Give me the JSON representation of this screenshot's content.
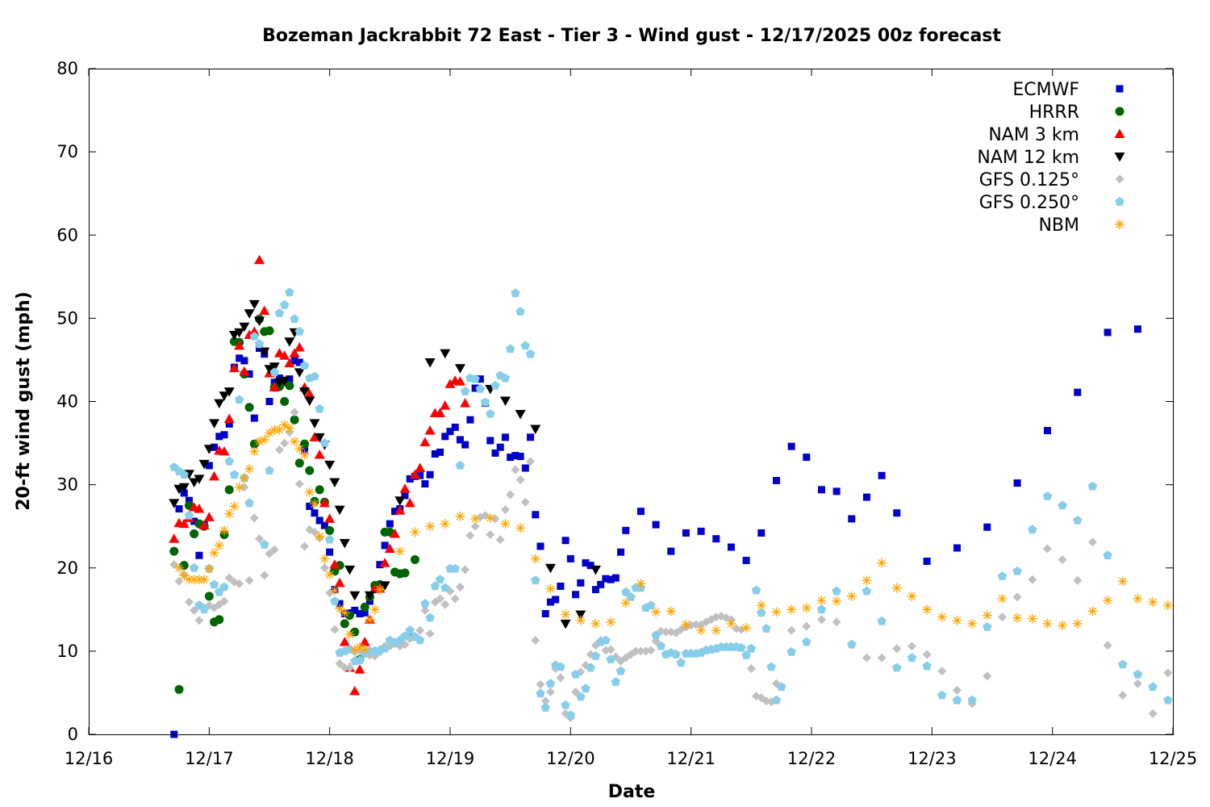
{
  "chart_data": {
    "type": "scatter",
    "title": "Bozeman Jackrabbit 72 East - Tier 3 - Wind gust - 12/17/2025 00z forecast",
    "xlabel": "Date",
    "ylabel": "20-ft wind gust (mph)",
    "x_units": "hours since 12/16 00:00",
    "xlim": [
      0,
      216
    ],
    "ylim": [
      0,
      80
    ],
    "x_ticks": [
      {
        "hour": 0,
        "label": "12/16"
      },
      {
        "hour": 24,
        "label": "12/17"
      },
      {
        "hour": 48,
        "label": "12/18"
      },
      {
        "hour": 72,
        "label": "12/19"
      },
      {
        "hour": 96,
        "label": "12/20"
      },
      {
        "hour": 120,
        "label": "12/21"
      },
      {
        "hour": 144,
        "label": "12/22"
      },
      {
        "hour": 168,
        "label": "12/23"
      },
      {
        "hour": 192,
        "label": "12/24"
      },
      {
        "hour": 216,
        "label": "12/25"
      }
    ],
    "y_ticks": [
      0,
      10,
      20,
      30,
      40,
      50,
      60,
      70,
      80
    ],
    "grid": false,
    "legend_position": "top-right",
    "series": [
      {
        "name": "ECMWF",
        "marker": "square",
        "color": "#0000cc",
        "segments": [
          {
            "start_hour": 17,
            "step_hours": 1,
            "values": [
              0,
              27.1,
              29.0,
              28.1,
              25.6,
              21.5,
              25.2,
              32.3,
              34.5,
              35.8,
              36.0,
              37.3,
              44.1,
              45.2,
              44.9,
              43.3,
              38.0,
              46.4,
              45.7,
              40.0,
              42.3,
              42.8,
              42.3,
              42.7,
              44.9,
              44.7,
              34.2,
              27.4,
              26.6,
              25.7,
              25.1,
              21.9,
              17.4,
              15.7,
              14.5,
              14.6,
              14.9,
              14.5,
              14.6,
              16.0,
              17.4,
              20.4,
              22.7,
              25.3,
              26.8,
              27.1,
              28.7,
              30.7,
              31.0,
              31.1,
              30.1,
              31.2,
              33.7,
              33.9,
              35.8,
              36.4,
              36.9,
              35.4,
              34.8,
              37.8,
              41.6,
              42.7,
              39.8,
              35.3,
              33.8,
              34.5,
              35.7,
              33.3,
              33.5,
              33.4,
              32.0,
              35.7,
              26.4,
              22.6,
              14.5,
              15.9,
              16.2,
              17.8,
              23.3,
              21.1,
              16.8,
              18.2,
              20.6,
              20.3,
              17.4,
              18.0,
              18.7,
              18.6,
              18.8,
              21.9
            ]
          },
          {
            "start_hour": 107,
            "step_hours": 3,
            "values": [
              24.5,
              26.8,
              25.2,
              22.0,
              24.2,
              24.4,
              23.5,
              22.5,
              20.9,
              24.2,
              30.5,
              34.6,
              33.3,
              29.4,
              29.2,
              25.9,
              28.5,
              31.1,
              26.6
            ]
          },
          {
            "start_hour": 167,
            "step_hours": 6,
            "values": [
              20.8,
              22.4,
              24.9,
              30.2,
              36.5,
              41.1,
              48.3,
              48.7
            ]
          }
        ]
      },
      {
        "name": "HRRR",
        "marker": "circle",
        "color": "#006400",
        "segments": [
          {
            "start_hour": 17,
            "step_hours": 1,
            "values": [
              22.0,
              5.4,
              20.3,
              27.5,
              24.1,
              25.3,
              25.0,
              16.6,
              13.5,
              13.8,
              24.0,
              29.4,
              47.2,
              47.1,
              43.3,
              39.3,
              34.9,
              49.9,
              48.4,
              48.5,
              41.7,
              41.8,
              40.0,
              41.9,
              37.8,
              32.6,
              34.9,
              31.7,
              28.0,
              29.4,
              27.9,
              24.5,
              19.6,
              20.3,
              13.3,
              14.3,
              12.3,
              9.0,
              15.3,
              16.5,
              17.9,
              18.0,
              24.3,
              24.3,
              19.5,
              19.3,
              19.4,
              11.8,
              21.0
            ]
          }
        ]
      },
      {
        "name": "NAM 3 km",
        "marker": "triangle-up",
        "color": "#ff0000",
        "segments": [
          {
            "start_hour": 17,
            "step_hours": 1,
            "values": [
              23.5,
              25.4,
              25.3,
              26.0,
              27.3,
              27.1,
              25.1,
              26.1,
              31.0,
              34.1,
              34.0,
              37.9,
              44.0,
              46.7,
              43.6,
              48.0,
              48.4,
              57.0,
              50.9,
              43.4,
              41.7,
              45.8,
              45.5,
              44.6,
              45.8,
              46.5,
              41.7,
              40.9,
              35.7,
              33.6,
              27.8,
              25.9,
              20.4,
              18.2,
              11.1,
              8.0,
              5.2,
              7.8,
              11.1,
              13.8,
              17.5,
              17.5,
              20.6,
              22.3,
              24.1,
              26.9,
              29.5,
              27.8,
              31.2,
              32.0,
              35.1,
              36.5,
              38.6,
              38.6,
              39.5,
              42.1,
              42.5,
              42.4,
              39.8
            ]
          }
        ]
      },
      {
        "name": "NAM 12 km",
        "marker": "triangle-down",
        "color": "#000000",
        "segments": [
          {
            "start_hour": 17,
            "step_hours": 1,
            "values": [
              27.8,
              29.5,
              29.7,
              31.3,
              30.3,
              30.7,
              32.5,
              34.3,
              37.4,
              39.8,
              40.7,
              41.2,
              48.0,
              48.3,
              49.0,
              50.6,
              51.7,
              49.7,
              46.0,
              43.9,
              44.2,
              42.3,
              42.5,
              47.2,
              48.3,
              43.5,
              41.2,
              40.1,
              37.4,
              35.7,
              34.8,
              32.4,
              30.3,
              27.0,
              23.0,
              19.8,
              16.7
            ]
          },
          {
            "start_hour": 56,
            "step_hours": 3,
            "values": [
              16.7,
              17.9,
              28.1,
              null,
              44.7,
              45.8,
              44.0,
              null,
              41.5,
              40.1,
              38.5,
              36.7,
              20.0,
              13.3,
              14.4,
              19.8
            ]
          }
        ]
      },
      {
        "name": "GFS 0.125°",
        "marker": "diamond",
        "color": "#c0c0c0",
        "segments": [
          {
            "start_hour": 17,
            "step_hours": 1,
            "values": [
              20.4,
              18.4,
              19.2,
              15.9,
              14.9,
              13.7,
              15.2,
              15.5,
              15.2,
              15.6,
              16.0,
              18.8,
              18.3,
              18.1,
              29.7,
              18.5,
              26.0,
              23.5,
              19.1,
              21.7,
              22.2,
              34.2,
              35.0,
              36.3,
              38.7,
              30.1,
              22.6,
              24.6,
              24.3,
              23.6,
              20.0,
              17.0,
              12.6,
              8.5,
              8.0,
              8.0,
              9.9,
              10.0,
              9.9,
              9.5,
              9.4,
              9.9,
              10.6,
              10.6,
              10.9,
              10.6,
              10.8,
              11.5,
              11.8,
              12.5,
              14.9,
              12.1,
              15.9,
              16.3,
              15.6,
              17.2,
              16.3,
              17.7,
              19.8,
              23.9,
              25.0,
              26.1,
              26.3,
              24.0,
              25.9,
              23.4,
              27.0,
              28.8,
              31.8,
              30.6,
              27.9,
              32.8,
              11.3,
              6.0,
              4.0,
              5.1,
              7.9,
              6.8,
              2.5,
              2.0,
              5.1,
              7.5,
              8.3,
              9.6,
              10.7,
              11.3,
              10.1,
              10.2,
              9.3,
              8.8,
              9.2,
              9.6,
              10.0,
              10.0,
              10.0,
              10.1,
              11.2,
              12.4,
              12.3,
              12.3,
              12.2,
              12.6,
              12.9,
              13.1,
              13.2,
              13.2,
              13.5,
              13.8,
              14.1,
              14.2,
              14.0,
              13.8,
              12.7,
              12.6,
              9.6,
              7.9,
              4.6,
              4.4,
              4.0,
              3.9,
              6.1
            ]
          },
          {
            "start_hour": 140,
            "step_hours": 3,
            "values": [
              12.5,
              13.0,
              13.8,
              13.5,
              10.8,
              9.2,
              9.2,
              10.3,
              10.6,
              9.6,
              7.6,
              5.3,
              3.7,
              7.0,
              14.1,
              16.5,
              18.6,
              22.3,
              21.0,
              18.5,
              23.1,
              10.7,
              4.7,
              6.1,
              2.5,
              7.4
            ]
          }
        ]
      },
      {
        "name": "GFS 0.250°",
        "marker": "pentagon",
        "color": "#87ceeb",
        "segments": [
          {
            "start_hour": 17,
            "step_hours": 1,
            "values": [
              32.1,
              31.6,
              31.2,
              26.3,
              20.0,
              15.5,
              15.0,
              19.9,
              18.0,
              17.1,
              17.7,
              32.8,
              31.2,
              40.2,
              30.8,
              27.8,
              47.8,
              46.9,
              22.8,
              31.7,
              43.5,
              50.6,
              51.6,
              53.1,
              49.9,
              48.4,
              44.3,
              42.8,
              43.0,
              39.1,
              35.0,
              23.4,
              16.0,
              9.8,
              10.0,
              10.2,
              8.8,
              8.9,
              9.7,
              10.0,
              10.0,
              10.1,
              10.3,
              11.3,
              11.0,
              11.3,
              11.8,
              12.5,
              11.7,
              11.3,
              15.7,
              14.0,
              17.8,
              18.6,
              17.6,
              19.9,
              19.9,
              32.3,
              41.2,
              42.8,
              42.7,
              41.5,
              39.9,
              38.5,
              41.9,
              43.1,
              42.8,
              46.3,
              53.0,
              50.8,
              46.7,
              45.7,
              18.5,
              4.9,
              3.2,
              6.1,
              8.3,
              8.1,
              3.5,
              2.3,
              7.2,
              4.5,
              5.5,
              8.0,
              9.4,
              11.1,
              11.3,
              9.0,
              6.3,
              7.6,
              17.1,
              16.5,
              17.6,
              17.6,
              15.2,
              15.5,
              11.9,
              10.6,
              9.6,
              9.8,
              9.6,
              8.6,
              9.7,
              9.7,
              9.7,
              9.8,
              10.1,
              10.2,
              10.3,
              10.5,
              10.5,
              10.5,
              10.5,
              10.4,
              9.5,
              10.3,
              17.3,
              14.6,
              12.7,
              8.1,
              4.1,
              5.7
            ]
          },
          {
            "start_hour": 140,
            "step_hours": 3,
            "values": [
              9.9,
              11.1,
              15.0,
              17.2,
              10.8,
              17.2,
              13.6,
              8.0,
              9.2,
              8.2,
              4.7,
              4.1,
              4.1,
              12.9,
              19.0,
              19.6,
              24.6,
              28.6,
              27.5,
              25.7,
              29.8,
              21.5,
              8.4,
              7.2,
              5.7,
              4.1
            ]
          }
        ]
      },
      {
        "name": "NBM",
        "marker": "asterisk",
        "color": "#ffa500",
        "segments": [
          {
            "start_hour": 18,
            "step_hours": 1,
            "values": [
              20.0,
              19.1,
              18.6,
              18.6,
              18.6,
              18.6,
              19.9,
              21.8,
              22.7,
              24.5,
              26.5,
              27.4,
              29.7,
              30.8,
              31.9,
              34.0,
              35.2,
              35.4,
              36.2,
              36.6,
              36.6,
              37.2,
              36.8,
              35.2,
              34.3,
              33.6,
              29.1,
              27.7,
              23.8,
              21.1,
              19.2,
              17.3,
              15.1,
              14.6,
              12.0,
              10.2,
              10.5,
              10.2,
              13.8,
              15.0,
              17.4
            ]
          },
          {
            "start_hour": 62,
            "step_hours": 3,
            "values": [
              22.0,
              24.3,
              25.0,
              25.3,
              26.2,
              25.9,
              26.0,
              25.3,
              24.8,
              21.1,
              17.5,
              14.4,
              13.7,
              13.3,
              13.5,
              15.8,
              18.1,
              14.7,
              14.8,
              13.2,
              12.5,
              12.5,
              13.3,
              12.8,
              15.5,
              14.7,
              15.0,
              15.2,
              16.1,
              16.0,
              16.6,
              18.5,
              20.6,
              17.6,
              16.6,
              15.0,
              14.1,
              13.7,
              13.3,
              14.3,
              16.3,
              14.0,
              13.9,
              13.3,
              13.1,
              13.3,
              14.8,
              16.1,
              18.4,
              16.3,
              15.9,
              15.5
            ]
          }
        ]
      }
    ]
  }
}
